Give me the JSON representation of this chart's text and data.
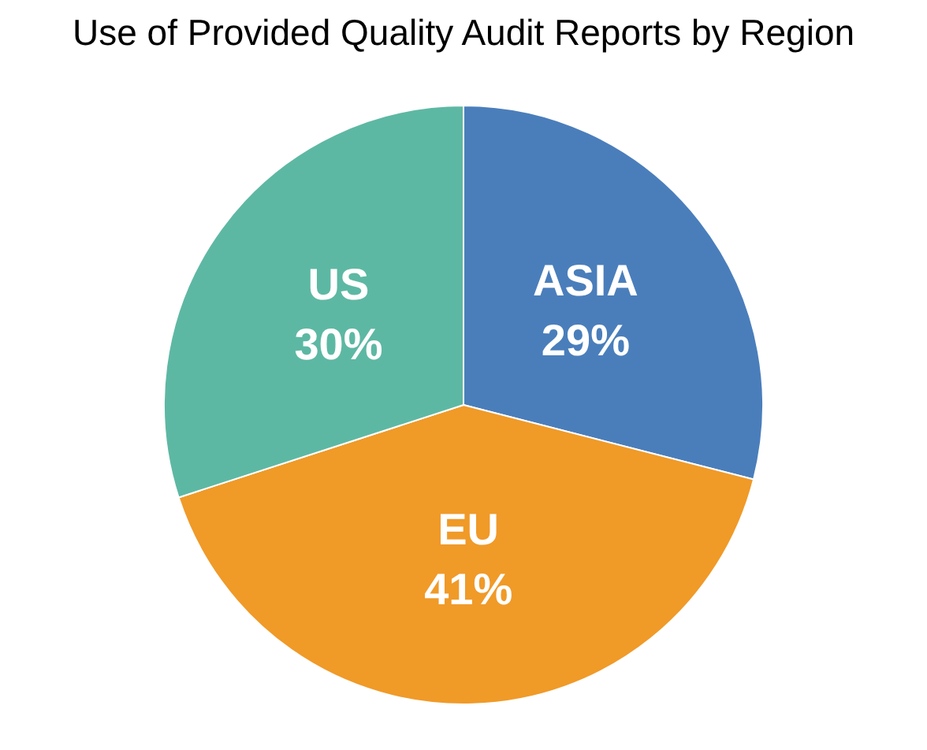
{
  "chart_data": {
    "type": "pie",
    "title": "Use of Provided Quality Audit Reports by Region",
    "categories": [
      "ASIA",
      "EU",
      "US"
    ],
    "values": [
      29,
      41,
      30
    ],
    "colors": [
      "#4a7ebb",
      "#f09a28",
      "#5db8a3"
    ],
    "value_labels": [
      "29%",
      "41%",
      "30%"
    ],
    "legend": false
  }
}
